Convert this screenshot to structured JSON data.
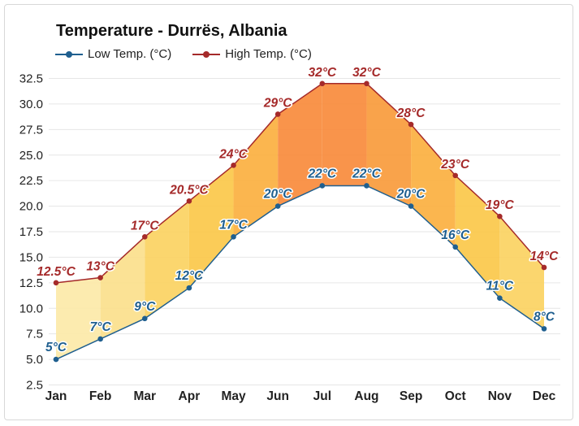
{
  "chart_data": {
    "type": "line",
    "title": "Temperature - Durrës, Albania",
    "categories": [
      "Jan",
      "Feb",
      "Mar",
      "Apr",
      "May",
      "Jun",
      "Jul",
      "Aug",
      "Sep",
      "Oct",
      "Nov",
      "Dec"
    ],
    "series": [
      {
        "name": "Low Temp. (°C)",
        "values": [
          5,
          7,
          9,
          12,
          17,
          20,
          22,
          22,
          20,
          16,
          11,
          8
        ],
        "labels": [
          "5°C",
          "7°C",
          "9°C",
          "12°C",
          "17°C",
          "20°C",
          "22°C",
          "22°C",
          "20°C",
          "16°C",
          "11°C",
          "8°C"
        ],
        "color": "#1f5f8f"
      },
      {
        "name": "High Temp. (°C)",
        "values": [
          12.5,
          13,
          17,
          20.5,
          24,
          29,
          32,
          32,
          28,
          23,
          19,
          14
        ],
        "labels": [
          "12.5°C",
          "13°C",
          "17°C",
          "20.5°C",
          "24°C",
          "29°C",
          "32°C",
          "32°C",
          "28°C",
          "23°C",
          "19°C",
          "14°C"
        ],
        "color": "#a52a2a"
      }
    ],
    "yticks": [
      "2.5",
      "5.0",
      "7.5",
      "10.0",
      "12.5",
      "15.0",
      "17.5",
      "20.0",
      "22.5",
      "25.0",
      "27.5",
      "30.0",
      "32.5"
    ],
    "ylim": [
      2.5,
      32.5
    ],
    "grid": true,
    "legend_position": "top-left",
    "band_colors": [
      "#fce9a8",
      "#fbe08c",
      "#fbd362",
      "#fbc84a",
      "#fbb040",
      "#f98b3c",
      "#f98b3c",
      "#f99b3c",
      "#fbb040",
      "#fbc84a",
      "#fbd362",
      "#fce9a8"
    ]
  }
}
